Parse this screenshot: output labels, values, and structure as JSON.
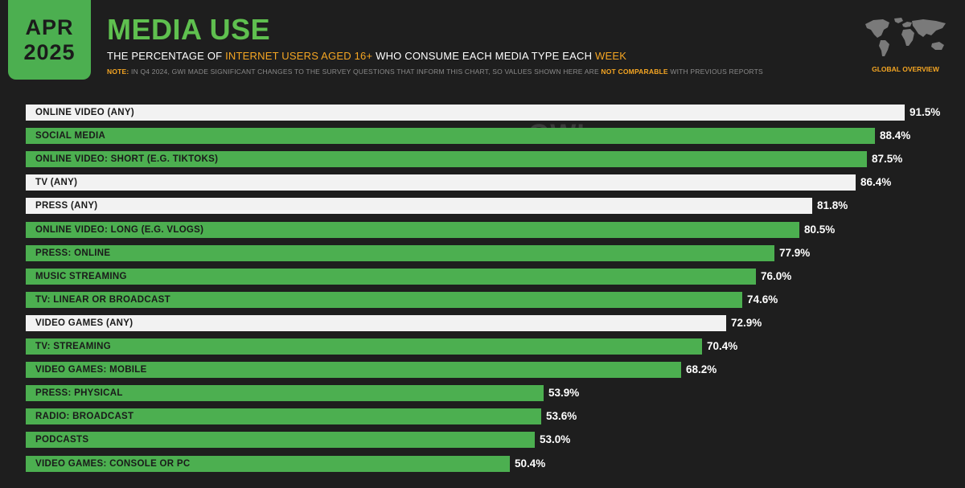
{
  "badge": {
    "month": "APR",
    "year": "2025"
  },
  "header": {
    "title": "MEDIA USE",
    "subtitle_pre": "THE PERCENTAGE OF ",
    "subtitle_hl1": "INTERNET USERS AGED 16+",
    "subtitle_mid": " WHO CONSUME EACH MEDIA TYPE EACH ",
    "subtitle_hl2": "WEEK",
    "note_label": "NOTE:",
    "note_pre": " IN Q4 2024, GWI MADE SIGNIFICANT CHANGES TO THE SURVEY QUESTIONS THAT INFORM THIS CHART, SO VALUES SHOWN HERE ARE ",
    "note_hl": "NOT COMPARABLE",
    "note_post": " WITH PREVIOUS REPORTS"
  },
  "region": {
    "label": "GLOBAL OVERVIEW",
    "icon": "world-map-icon"
  },
  "watermark": {
    "datareportal": "DATAREPORTAL",
    "gwi": "GWI."
  },
  "colors": {
    "accent_green": "#4caf50",
    "highlight_orange": "#f5a623",
    "background": "#1e1e1e",
    "aggregate_bar": "#f2f2f2"
  },
  "chart_data": {
    "type": "bar",
    "orientation": "horizontal",
    "title": "MEDIA USE",
    "categories": [
      "ONLINE VIDEO (ANY)",
      "SOCIAL MEDIA",
      "ONLINE VIDEO: SHORT (E.G. TIKTOKS)",
      "TV (ANY)",
      "PRESS (ANY)",
      "ONLINE VIDEO: LONG (E.G. VLOGS)",
      "PRESS: ONLINE",
      "MUSIC STREAMING",
      "TV: LINEAR OR BROADCAST",
      "VIDEO GAMES (ANY)",
      "TV: STREAMING",
      "VIDEO GAMES: MOBILE",
      "PRESS: PHYSICAL",
      "RADIO: BROADCAST",
      "PODCASTS",
      "VIDEO GAMES: CONSOLE OR PC"
    ],
    "values": [
      91.5,
      88.4,
      87.5,
      86.4,
      81.8,
      80.5,
      77.9,
      76.0,
      74.6,
      72.9,
      70.4,
      68.2,
      53.9,
      53.6,
      53.0,
      50.4
    ],
    "value_labels": [
      "91.5%",
      "88.4%",
      "87.5%",
      "86.4%",
      "81.8%",
      "80.5%",
      "77.9%",
      "76.0%",
      "74.6%",
      "72.9%",
      "70.4%",
      "68.2%",
      "53.9%",
      "53.6%",
      "53.0%",
      "50.4%"
    ],
    "bar_style": [
      "white",
      "green",
      "green",
      "white",
      "white",
      "green",
      "green",
      "green",
      "green",
      "white",
      "green",
      "green",
      "green",
      "green",
      "green",
      "green"
    ],
    "xlim": [
      0,
      100
    ],
    "grid": false
  }
}
